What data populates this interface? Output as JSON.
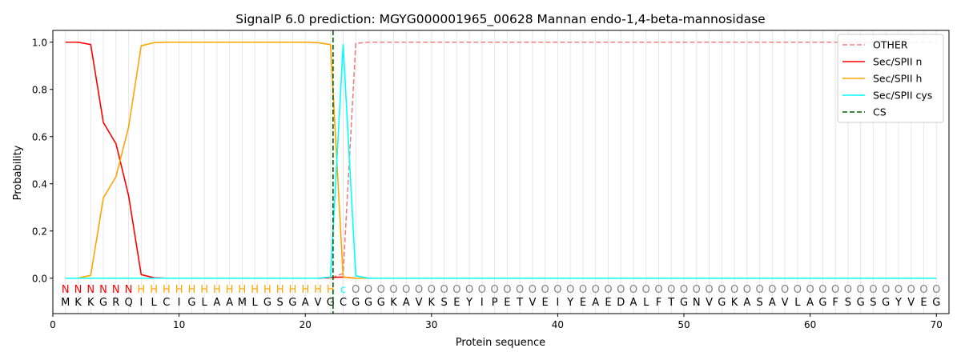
{
  "chart_data": {
    "type": "line",
    "title": "SignalP 6.0 prediction: MGYG000001965_00628 Mannan endo-1,4-beta-mannosidase",
    "xlabel": "Protein sequence",
    "ylabel": "Probability",
    "xlim": [
      0,
      71
    ],
    "ylim": [
      -0.15,
      1.05
    ],
    "xticks": [
      0,
      10,
      20,
      30,
      40,
      50,
      60,
      70
    ],
    "yticks": [
      0.0,
      0.2,
      0.4,
      0.6,
      0.8,
      1.0
    ],
    "ytick_labels": [
      "0.0",
      "0.2",
      "0.4",
      "0.6",
      "0.8",
      "1.0"
    ],
    "legend_position": "top-right",
    "sequence": [
      "M",
      "K",
      "K",
      "G",
      "R",
      "Q",
      "I",
      "L",
      "C",
      "I",
      "G",
      "L",
      "A",
      "A",
      "M",
      "L",
      "G",
      "S",
      "G",
      "A",
      "V",
      "G",
      "C",
      "G",
      "G",
      "G",
      "K",
      "A",
      "V",
      "K",
      "S",
      "E",
      "Y",
      "I",
      "P",
      "E",
      "T",
      "V",
      "E",
      "I",
      "Y",
      "E",
      "A",
      "E",
      "D",
      "A",
      "L",
      "F",
      "T",
      "G",
      "N",
      "V",
      "G",
      "K",
      "A",
      "S",
      "A",
      "V",
      "L",
      "A",
      "G",
      "F",
      "S",
      "G",
      "S",
      "G",
      "Y",
      "V",
      "E",
      "G"
    ],
    "labels": [
      "N",
      "N",
      "N",
      "N",
      "N",
      "N",
      "H",
      "H",
      "H",
      "H",
      "H",
      "H",
      "H",
      "H",
      "H",
      "H",
      "H",
      "H",
      "H",
      "H",
      "H",
      "H",
      "C",
      "O",
      "O",
      "O",
      "O",
      "O",
      "O",
      "O",
      "O",
      "O",
      "O",
      "O",
      "O",
      "O",
      "O",
      "O",
      "O",
      "O",
      "O",
      "O",
      "O",
      "O",
      "O",
      "O",
      "O",
      "O",
      "O",
      "O",
      "O",
      "O",
      "O",
      "O",
      "O",
      "O",
      "O",
      "O",
      "O",
      "O",
      "O",
      "O",
      "O",
      "O",
      "O",
      "O",
      "O",
      "O",
      "O",
      "O"
    ],
    "label_colors": {
      "N": "#ff0000",
      "H": "#ffa500",
      "C": "#00ffff",
      "O": "#808080"
    },
    "series": [
      {
        "name": "OTHER",
        "color": "#f08080",
        "dash": "dashed",
        "values": [
          0,
          0,
          0,
          0,
          0,
          0,
          0,
          0,
          0,
          0,
          0,
          0,
          0,
          0,
          0,
          0,
          0,
          0,
          0,
          0,
          0,
          0,
          0.02,
          0.995,
          1,
          1,
          1,
          1,
          1,
          1,
          1,
          1,
          1,
          1,
          1,
          1,
          1,
          1,
          1,
          1,
          1,
          1,
          1,
          1,
          1,
          1,
          1,
          1,
          1,
          1,
          1,
          1,
          1,
          1,
          1,
          1,
          1,
          1,
          1,
          1,
          1,
          1,
          1,
          1,
          1,
          1,
          1,
          1,
          1,
          1
        ]
      },
      {
        "name": "Sec/SPII n",
        "color": "#ff0000",
        "dash": "solid",
        "values": [
          1,
          1,
          0.99,
          0.66,
          0.57,
          0.35,
          0.015,
          0.002,
          0,
          0,
          0,
          0,
          0,
          0,
          0,
          0,
          0,
          0,
          0,
          0,
          0,
          0.003,
          0.005,
          0,
          0,
          0,
          0,
          0,
          0,
          0,
          0,
          0,
          0,
          0,
          0,
          0,
          0,
          0,
          0,
          0,
          0,
          0,
          0,
          0,
          0,
          0,
          0,
          0,
          0,
          0,
          0,
          0,
          0,
          0,
          0,
          0,
          0,
          0,
          0,
          0,
          0,
          0,
          0,
          0,
          0,
          0,
          0,
          0,
          0,
          0
        ]
      },
      {
        "name": "Sec/SPII h",
        "color": "#ffa500",
        "dash": "solid",
        "values": [
          0,
          0,
          0.012,
          0.34,
          0.43,
          0.64,
          0.985,
          0.998,
          1,
          1,
          1,
          1,
          1,
          1,
          1,
          1,
          1,
          1,
          1,
          1,
          0.998,
          0.99,
          0.005,
          0,
          0,
          0,
          0,
          0,
          0,
          0,
          0,
          0,
          0,
          0,
          0,
          0,
          0,
          0,
          0,
          0,
          0,
          0,
          0,
          0,
          0,
          0,
          0,
          0,
          0,
          0,
          0,
          0,
          0,
          0,
          0,
          0,
          0,
          0,
          0,
          0,
          0,
          0,
          0,
          0,
          0,
          0,
          0,
          0,
          0,
          0
        ]
      },
      {
        "name": "Sec/SPII cys",
        "color": "#00ffff",
        "dash": "solid",
        "values": [
          0,
          0,
          0,
          0,
          0,
          0,
          0,
          0,
          0,
          0,
          0,
          0,
          0,
          0,
          0,
          0,
          0,
          0,
          0,
          0,
          0,
          0.005,
          0.99,
          0.01,
          0,
          0,
          0,
          0,
          0,
          0,
          0,
          0,
          0,
          0,
          0,
          0,
          0,
          0,
          0,
          0,
          0,
          0,
          0,
          0,
          0,
          0,
          0,
          0,
          0,
          0,
          0,
          0,
          0,
          0,
          0,
          0,
          0,
          0,
          0,
          0,
          0,
          0,
          0,
          0,
          0,
          0,
          0,
          0,
          0,
          0
        ]
      }
    ],
    "cs": {
      "name": "CS",
      "x": 22.2,
      "color": "#006400",
      "dash": "dashed"
    }
  }
}
